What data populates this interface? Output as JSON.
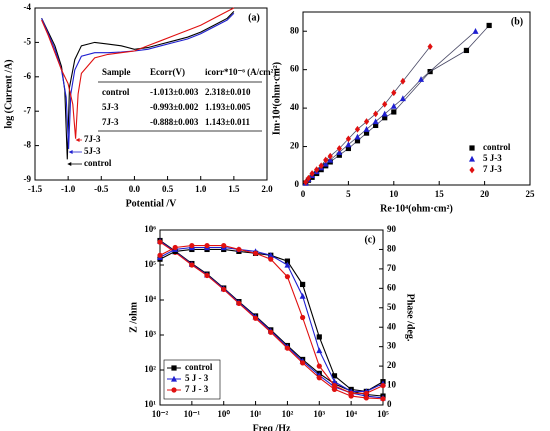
{
  "chart_data": [
    {
      "type": "line",
      "title": "(a)",
      "xlabel": "Potential /V",
      "ylabel": "log (Current /A)",
      "xlim": [
        -1.5,
        2.0
      ],
      "xticks": [
        -1.5,
        {
          "value": -1.0,
          "label": "-1.0"
        },
        -0.5,
        {
          "value": 0,
          "label": "0.0"
        },
        0.5,
        {
          "value": 1.0,
          "label": "1.0"
        },
        1.5,
        {
          "value": 2.0,
          "label": "2.0"
        }
      ],
      "ylim": [
        -9,
        -4
      ],
      "yticks": [
        -9,
        -8,
        -7,
        -6,
        -5,
        -4
      ],
      "series": [
        {
          "name": "control",
          "color": "#000000",
          "x": [
            -1.4,
            -1.3,
            -1.2,
            -1.1,
            -1.05,
            -1.013,
            -0.98,
            -0.9,
            -0.8,
            -0.6,
            -0.4,
            -0.2,
            0,
            0.2,
            0.4,
            0.6,
            0.8,
            1.0,
            1.2,
            1.4,
            1.5
          ],
          "values": [
            -4.3,
            -4.7,
            -5.1,
            -5.7,
            -6.4,
            -8.4,
            -6.3,
            -5.5,
            -5.1,
            -5.0,
            -5.05,
            -5.1,
            -5.2,
            -5.15,
            -5.05,
            -4.95,
            -4.85,
            -4.7,
            -4.5,
            -4.3,
            -4.1
          ]
        },
        {
          "name": "5J-3",
          "color": "#1f1fd0",
          "x": [
            -1.4,
            -1.3,
            -1.2,
            -1.1,
            -1.03,
            -0.993,
            -0.96,
            -0.9,
            -0.8,
            -0.6,
            -0.4,
            -0.2,
            0,
            0.2,
            0.4,
            0.6,
            0.8,
            1.0,
            1.2,
            1.4,
            1.5
          ],
          "values": [
            -4.3,
            -4.75,
            -5.2,
            -5.8,
            -6.6,
            -8.1,
            -6.5,
            -5.8,
            -5.4,
            -5.3,
            -5.3,
            -5.28,
            -5.25,
            -5.2,
            -5.1,
            -5.0,
            -4.9,
            -4.75,
            -4.55,
            -4.35,
            -4.15
          ]
        },
        {
          "name": "7J-3",
          "color": "#e01010",
          "x": [
            -1.4,
            -1.3,
            -1.2,
            -1.1,
            -1.0,
            -0.93,
            -0.888,
            -0.85,
            -0.8,
            -0.6,
            -0.4,
            -0.2,
            0,
            0.2,
            0.4,
            0.6,
            0.8,
            1.0,
            1.2,
            1.4,
            1.5
          ],
          "values": [
            -4.35,
            -4.8,
            -5.3,
            -5.8,
            -6.2,
            -6.8,
            -7.8,
            -6.5,
            -5.9,
            -5.45,
            -5.35,
            -5.3,
            -5.25,
            -5.1,
            -4.95,
            -4.8,
            -4.65,
            -4.5,
            -4.3,
            -4.1,
            -4.0
          ]
        }
      ],
      "annotations": [
        {
          "text": "7J-3",
          "color": "#e01010"
        },
        {
          "text": "5J-3",
          "color": "#1f1fd0"
        },
        {
          "text": "control",
          "color": "#000000"
        }
      ],
      "table": {
        "header": [
          "Sample",
          "Ecorr(V)",
          "icorr*10⁻⁶ (A/cm²)"
        ],
        "rows": [
          [
            "control",
            "-1.013±0.003",
            "2.318±0.010"
          ],
          [
            "5J-3",
            "-0.993±0.002",
            "1.193±0.005"
          ],
          [
            "7J-3",
            "-0.888±0.003",
            "1.143±0.011"
          ]
        ]
      }
    },
    {
      "type": "scatter",
      "title": "(b)",
      "xlabel": "Re·10⁴(ohm·cm²)",
      "ylabel": "Im·10⁴(ohm·cm²)",
      "xlim": [
        0,
        25
      ],
      "xticks": [
        0,
        5,
        10,
        15,
        20,
        25
      ],
      "ylim": [
        0,
        90
      ],
      "yticks": [
        0,
        20,
        40,
        60,
        80
      ],
      "legend": "lower right",
      "series": [
        {
          "name": "control",
          "color": "#000000",
          "marker": "square",
          "x": [
            0.3,
            0.6,
            1,
            1.5,
            2,
            2.5,
            3,
            4,
            5,
            6,
            7,
            8,
            9,
            10,
            14,
            18,
            20.5
          ],
          "values": [
            1,
            2.5,
            4,
            6,
            8,
            10,
            12,
            15.5,
            19,
            23,
            27,
            31,
            35,
            38,
            59,
            70,
            83
          ]
        },
        {
          "name": "5 J-3",
          "color": "#1f1fd0",
          "marker": "triangle",
          "x": [
            0.3,
            0.6,
            1,
            1.5,
            2,
            2.5,
            3,
            4,
            5,
            6,
            7,
            8,
            9,
            10,
            11,
            13,
            19
          ],
          "values": [
            1,
            3,
            5,
            7,
            9,
            11,
            13,
            17,
            21,
            25,
            29,
            33,
            37,
            41,
            45,
            55,
            80
          ]
        },
        {
          "name": "7 J-3",
          "color": "#e01010",
          "marker": "diamond",
          "x": [
            0.3,
            0.6,
            1,
            1.5,
            2,
            2.5,
            3,
            4,
            5,
            6,
            7,
            8,
            9,
            10,
            11,
            14
          ],
          "values": [
            1.5,
            3.5,
            6,
            8,
            10,
            13,
            15,
            19,
            24,
            29,
            33,
            37,
            42,
            48,
            54,
            72
          ]
        }
      ]
    },
    {
      "type": "line",
      "title": "(c)",
      "xlabel": "Freq /Hz",
      "ylabel": "Z /ohm",
      "y2label": "Phase /deg.",
      "xscale": "log",
      "yscale": "log",
      "legend": "lower left",
      "xlim": [
        0.01,
        100000
      ],
      "xticks": [
        {
          "value": 0.01,
          "label": "10⁻²"
        },
        {
          "value": 0.1,
          "label": "10⁻¹"
        },
        {
          "value": 1,
          "label": "10⁰"
        },
        {
          "value": 10,
          "label": "10¹"
        },
        {
          "value": 100,
          "label": "10²"
        },
        {
          "value": 1000,
          "label": "10³"
        },
        {
          "value": 10000,
          "label": "10⁴"
        },
        {
          "value": 100000,
          "label": "10⁵"
        }
      ],
      "ylim": [
        10,
        1000000
      ],
      "yticks": [
        {
          "value": 10,
          "label": "10¹"
        },
        {
          "value": 100,
          "label": "10²"
        },
        {
          "value": 1000,
          "label": "10³"
        },
        {
          "value": 10000,
          "label": "10⁴"
        },
        {
          "value": 100000,
          "label": "10⁵"
        },
        {
          "value": 1000000,
          "label": "10⁶"
        }
      ],
      "y2lim": [
        0,
        90
      ],
      "y2ticks": [
        0,
        10,
        20,
        30,
        40,
        50,
        60,
        70,
        80,
        90
      ],
      "series": [
        {
          "name": "control",
          "color": "#000000",
          "marker": "square",
          "x": [
            0.01,
            0.03,
            0.1,
            0.3,
            1,
            3,
            10,
            30,
            100,
            300,
            1000,
            3000,
            10000,
            30000,
            100000
          ],
          "values": [
            500000,
            250000,
            110000,
            55000,
            22000,
            9000,
            3500,
            1400,
            500,
            200,
            80,
            40,
            25,
            20,
            18
          ]
        },
        {
          "name": "5 J - 3",
          "color": "#1f1fd0",
          "marker": "triangle",
          "x": [
            0.01,
            0.03,
            0.1,
            0.3,
            1,
            3,
            10,
            30,
            100,
            300,
            1000,
            3000,
            10000,
            30000,
            100000
          ],
          "values": [
            480000,
            240000,
            105000,
            52000,
            21000,
            8500,
            3300,
            1300,
            460,
            180,
            70,
            33,
            22,
            18,
            16
          ]
        },
        {
          "name": "7 J - 3",
          "color": "#e01010",
          "marker": "circle",
          "x": [
            0.01,
            0.03,
            0.1,
            0.3,
            1,
            3,
            10,
            30,
            100,
            300,
            1000,
            3000,
            10000,
            30000,
            100000
          ],
          "values": [
            450000,
            230000,
            100000,
            50000,
            20000,
            8000,
            3000,
            1200,
            420,
            160,
            60,
            28,
            18,
            16,
            15
          ]
        },
        {
          "color": "#000000",
          "marker": "square",
          "axis": "y2",
          "x": [
            0.01,
            0.03,
            0.1,
            0.3,
            1,
            3,
            10,
            30,
            100,
            300,
            1000,
            3000,
            10000,
            30000,
            100000
          ],
          "values": [
            75,
            79,
            80,
            80,
            80,
            79,
            78,
            77,
            74,
            62,
            35,
            15,
            8,
            7,
            12
          ]
        },
        {
          "color": "#1f1fd0",
          "marker": "triangle",
          "axis": "y2",
          "x": [
            0.01,
            0.03,
            0.1,
            0.3,
            1,
            3,
            10,
            30,
            100,
            300,
            1000,
            3000,
            10000,
            30000,
            100000
          ],
          "values": [
            76,
            80,
            81,
            81,
            81,
            80,
            79,
            77,
            72,
            56,
            28,
            12,
            7,
            7,
            11
          ]
        },
        {
          "color": "#e01010",
          "marker": "circle",
          "axis": "y2",
          "x": [
            0.01,
            0.03,
            0.1,
            0.3,
            1,
            3,
            10,
            30,
            100,
            300,
            1000,
            3000,
            10000,
            30000,
            100000
          ],
          "values": [
            77,
            81,
            82,
            82,
            82,
            80,
            78,
            75,
            66,
            45,
            20,
            10,
            6,
            6,
            10
          ]
        }
      ]
    }
  ]
}
